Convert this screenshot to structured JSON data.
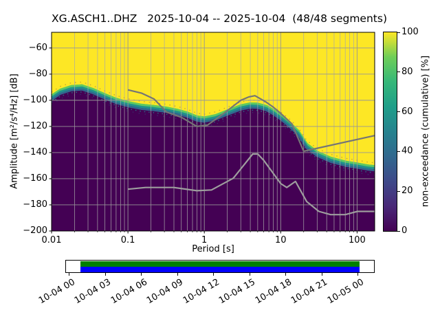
{
  "chart_data": {
    "type": "heatmap",
    "title": "XG.ASCH1..DHZ   2025-10-04 -- 2025-10-04  (48/48 segments)",
    "xlabel": "Period [s]",
    "ylabel": "Amplitude [m²/s⁴/Hz] [dB]",
    "x_scale": "log",
    "xlim": [
      0.01,
      170
    ],
    "ylim": [
      -200,
      -48
    ],
    "x_ticks": [
      0.01,
      0.1,
      1,
      10,
      100
    ],
    "y_ticks": [
      -60,
      -80,
      -100,
      -120,
      -140,
      -160,
      -180,
      -200
    ],
    "grid": true,
    "value_range": [
      0,
      100
    ],
    "colorbar": {
      "label": "non-exceedance (cumulative) [%]",
      "ticks": [
        0,
        20,
        40,
        60,
        80,
        100
      ],
      "colormap": "viridis",
      "colors": [
        "#440154",
        "#482878",
        "#3e4989",
        "#31688e",
        "#26828e",
        "#1f9e89",
        "#35b779",
        "#6ece58",
        "#fde725"
      ]
    },
    "regions": {
      "high_color": "#fde725",
      "low_color": "#440154"
    },
    "distribution_boundary": {
      "description": "Transition curve between 100% non-exceedance (yellow, above) and 0% (dark purple, below); approximates the PSD distribution of XG.ASCH1..DHZ",
      "points_period_db": [
        [
          0.01,
          -97
        ],
        [
          0.013,
          -92.5
        ],
        [
          0.018,
          -89.8
        ],
        [
          0.025,
          -89.2
        ],
        [
          0.035,
          -92
        ],
        [
          0.05,
          -96
        ],
        [
          0.07,
          -99.5
        ],
        [
          0.1,
          -102
        ],
        [
          0.15,
          -104
        ],
        [
          0.22,
          -105
        ],
        [
          0.32,
          -106.2
        ],
        [
          0.45,
          -108
        ],
        [
          0.6,
          -110
        ],
        [
          0.8,
          -113
        ],
        [
          1.0,
          -113.8
        ],
        [
          1.4,
          -112
        ],
        [
          2.0,
          -108.5
        ],
        [
          3.0,
          -104.5
        ],
        [
          4.0,
          -103
        ],
        [
          5.0,
          -103.2
        ],
        [
          6.5,
          -105
        ],
        [
          8.0,
          -108
        ],
        [
          10,
          -112
        ],
        [
          13,
          -117.5
        ],
        [
          17,
          -124
        ],
        [
          22,
          -134
        ],
        [
          30,
          -140
        ],
        [
          45,
          -144.5
        ],
        [
          70,
          -147.5
        ],
        [
          100,
          -149
        ],
        [
          140,
          -150.5
        ],
        [
          170,
          -151
        ]
      ]
    },
    "noise_models": [
      {
        "name": "high-noise-model",
        "color": "#757575",
        "points_period_db": [
          [
            0.1,
            -92
          ],
          [
            0.15,
            -94.5
          ],
          [
            0.22,
            -99
          ],
          [
            0.32,
            -109
          ],
          [
            0.5,
            -113
          ],
          [
            0.8,
            -120
          ],
          [
            1.1,
            -119
          ],
          [
            1.8,
            -110
          ],
          [
            3.0,
            -100
          ],
          [
            3.8,
            -97.5
          ],
          [
            4.6,
            -96.5
          ],
          [
            6.3,
            -101
          ],
          [
            7.9,
            -105
          ],
          [
            10,
            -110
          ],
          [
            14,
            -118
          ],
          [
            20,
            -139
          ],
          [
            170,
            -127
          ]
        ]
      },
      {
        "name": "low-noise-model",
        "color": "#9e9e9e",
        "points_period_db": [
          [
            0.1,
            -168
          ],
          [
            0.17,
            -166.7
          ],
          [
            0.4,
            -166.7
          ],
          [
            0.8,
            -169.2
          ],
          [
            1.24,
            -168.6
          ],
          [
            2.4,
            -159.6
          ],
          [
            4.3,
            -141.1
          ],
          [
            5.0,
            -141.1
          ],
          [
            6.0,
            -146
          ],
          [
            10,
            -163.7
          ],
          [
            12,
            -166.7
          ],
          [
            15.6,
            -162.1
          ],
          [
            21.9,
            -177.5
          ],
          [
            31.6,
            -185
          ],
          [
            45,
            -187.5
          ],
          [
            70,
            -187.5
          ],
          [
            101,
            -185
          ],
          [
            170,
            -185
          ]
        ]
      }
    ],
    "coverage_bar": {
      "tick_labels": [
        "10-04 00",
        "10-04 03",
        "10-04 06",
        "10-04 09",
        "10-04 12",
        "10-04 15",
        "10-04 18",
        "10-04 21",
        "10-05 00"
      ],
      "fill_start_frac": 0.049,
      "fill_end_frac": 0.951,
      "top_color": "#008000",
      "bottom_color": "#0000ff"
    }
  }
}
